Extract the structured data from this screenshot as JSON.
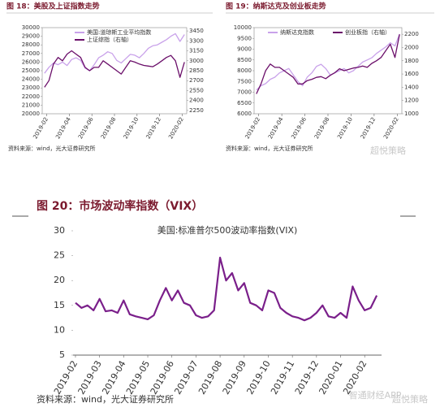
{
  "chart_data": [
    {
      "type": "line",
      "title": "图 18：美股及上证指数走势",
      "source": "资料来源：wind，光大证券研究所",
      "x": [
        0.8,
        1.2,
        1.6,
        2.0,
        2.4,
        2.8,
        3.2,
        3.6,
        4.0,
        4.4,
        4.8,
        5.2,
        5.6,
        6.0,
        6.4,
        6.8,
        7.2,
        7.6,
        8.0,
        8.4,
        8.8,
        9.2,
        9.6,
        10.0,
        10.4,
        10.8,
        11.2,
        11.6,
        12.0,
        12.4,
        12.8,
        13.2
      ],
      "xlim": [
        0.6,
        13.4
      ],
      "xticks": [
        {
          "value": 1,
          "label": "2019-02"
        },
        {
          "value": 3,
          "label": "2019-04"
        },
        {
          "value": 5,
          "label": "2019-06"
        },
        {
          "value": 7,
          "label": "2019-08"
        },
        {
          "value": 9,
          "label": "2019-10"
        },
        {
          "value": 11,
          "label": "2019-12"
        },
        {
          "value": 13,
          "label": "2020-02"
        }
      ],
      "ylim": [
        20000,
        30000
      ],
      "yticks": [
        20000,
        21000,
        22000,
        23000,
        24000,
        25000,
        26000,
        27000,
        28000,
        29000,
        30000
      ],
      "y2lim": [
        2200,
        3500
      ],
      "y2ticks": [
        2250,
        2400,
        2550,
        2700,
        2850,
        3000,
        3150,
        3300,
        3450
      ],
      "series": [
        {
          "name": "美国:道琼斯工业平均指数",
          "color": "#c9a2ea",
          "values": [
            24700,
            25400,
            25900,
            25700,
            26000,
            25600,
            26300,
            26500,
            26200,
            25300,
            25000,
            25700,
            26500,
            26800,
            27200,
            27000,
            26200,
            25900,
            26400,
            26900,
            26800,
            26500,
            27000,
            27600,
            27900,
            28000,
            28300,
            28600,
            29000,
            29300,
            28400,
            29200
          ]
        },
        {
          "name": "上证综指（右轴）",
          "color": "#6b0f6a",
          "axis": "y2",
          "values": [
            2600,
            2700,
            2950,
            3050,
            3000,
            3100,
            3150,
            3100,
            3050,
            2900,
            2850,
            2900,
            2900,
            3000,
            2950,
            2900,
            2850,
            2800,
            2900,
            3000,
            2980,
            2950,
            2930,
            2920,
            2910,
            2950,
            3000,
            3050,
            3080,
            3000,
            2750,
            2980
          ]
        }
      ]
    },
    {
      "type": "line",
      "title": "图 19：纳斯达克及创业板走势",
      "source": "资料来源：wind，光大证券研究所",
      "x": [
        0.8,
        1.2,
        1.6,
        2.0,
        2.4,
        2.8,
        3.2,
        3.6,
        4.0,
        4.4,
        4.8,
        5.2,
        5.6,
        6.0,
        6.4,
        6.8,
        7.2,
        7.6,
        8.0,
        8.4,
        8.8,
        9.2,
        9.6,
        10.0,
        10.4,
        10.8,
        11.2,
        11.6,
        12.0,
        12.4,
        12.8,
        13.2
      ],
      "xlim": [
        0.6,
        13.4
      ],
      "xticks": [
        {
          "value": 1,
          "label": "2019-02"
        },
        {
          "value": 3,
          "label": "2019-04"
        },
        {
          "value": 5,
          "label": "2019-06"
        },
        {
          "value": 7,
          "label": "2019-08"
        },
        {
          "value": 9,
          "label": "2019-10"
        },
        {
          "value": 11,
          "label": "2019-12"
        },
        {
          "value": 13,
          "label": "2020-02"
        }
      ],
      "ylim": [
        6000,
        10000
      ],
      "yticks": [
        6000,
        6500,
        7000,
        7500,
        8000,
        8500,
        9000,
        9500,
        10000
      ],
      "y2lim": [
        1000,
        2300
      ],
      "y2ticks": [
        1000,
        1200,
        1400,
        1600,
        1800,
        2000,
        2200
      ],
      "series": [
        {
          "name": "纳斯达克指数",
          "color": "#c9a2ea",
          "values": [
            7100,
            7300,
            7400,
            7600,
            7700,
            7900,
            8000,
            8100,
            7800,
            7500,
            7300,
            7700,
            7900,
            8200,
            8300,
            8100,
            7800,
            7900,
            8000,
            8100,
            7900,
            8000,
            8200,
            8400,
            8500,
            8600,
            8800,
            8950,
            9100,
            9300,
            9150,
            9700
          ]
        },
        {
          "name": "创业板指（右轴）",
          "color": "#6b0f6a",
          "axis": "y2",
          "values": [
            1300,
            1450,
            1650,
            1750,
            1700,
            1700,
            1650,
            1600,
            1550,
            1450,
            1450,
            1500,
            1520,
            1550,
            1560,
            1530,
            1580,
            1620,
            1680,
            1650,
            1670,
            1690,
            1700,
            1720,
            1700,
            1760,
            1800,
            1850,
            1950,
            2050,
            1850,
            2200
          ]
        }
      ]
    },
    {
      "type": "line",
      "title": "图 20：市场波动率指数（VIX）",
      "source": "资料来源：wind，光大证券研究所",
      "x": [
        0,
        0.25,
        0.5,
        0.75,
        1,
        1.25,
        1.5,
        1.75,
        2,
        2.25,
        2.5,
        2.75,
        3,
        3.25,
        3.5,
        3.75,
        4,
        4.25,
        4.5,
        4.75,
        5,
        5.25,
        5.5,
        5.75,
        6,
        6.25,
        6.5,
        6.75,
        7,
        7.25,
        7.5,
        7.75,
        8,
        8.25,
        8.5,
        8.75,
        9,
        9.25,
        9.5,
        9.75,
        10,
        10.25,
        10.5,
        10.75,
        11,
        11.25,
        11.5,
        11.75,
        12,
        12.25,
        12.5
      ],
      "xlim": [
        -0.1,
        12.7
      ],
      "xticks": [
        {
          "value": 0,
          "label": "2019-02"
        },
        {
          "value": 1,
          "label": "2019-03"
        },
        {
          "value": 2,
          "label": "2019-04"
        },
        {
          "value": 3,
          "label": "2019-05"
        },
        {
          "value": 4,
          "label": "2019-06"
        },
        {
          "value": 5,
          "label": "2019-07"
        },
        {
          "value": 6,
          "label": "2019-08"
        },
        {
          "value": 7,
          "label": "2019-09"
        },
        {
          "value": 8,
          "label": "2019-10"
        },
        {
          "value": 9,
          "label": "2019-11"
        },
        {
          "value": 10,
          "label": "2019-12"
        },
        {
          "value": 11,
          "label": "2020-01"
        },
        {
          "value": 12,
          "label": "2020-02"
        }
      ],
      "ylim": [
        5,
        30
      ],
      "yticks": [
        5,
        10,
        15,
        20,
        25,
        30
      ],
      "series": [
        {
          "name": "美国:标准普尔500波动率指数(VIX)",
          "color": "#7a1f8a",
          "values": [
            15.5,
            14.5,
            15.0,
            14.0,
            16.3,
            13.8,
            14.0,
            13.5,
            16.0,
            13.2,
            12.8,
            12.5,
            12.2,
            13.0,
            16.0,
            18.5,
            16.0,
            18.0,
            15.5,
            15.0,
            13.0,
            12.5,
            12.8,
            14.0,
            24.6,
            20.0,
            21.5,
            18.0,
            19.5,
            15.5,
            15.0,
            14.0,
            18.0,
            17.5,
            14.5,
            13.5,
            12.8,
            12.5,
            12.0,
            12.5,
            13.5,
            15.0,
            12.8,
            12.5,
            13.5,
            12.5,
            18.8,
            16.0,
            14.0,
            14.5,
            17.0
          ]
        }
      ]
    }
  ],
  "watermarks": [
    "超悦策略",
    "智通财经APP",
    "超悦策略"
  ]
}
